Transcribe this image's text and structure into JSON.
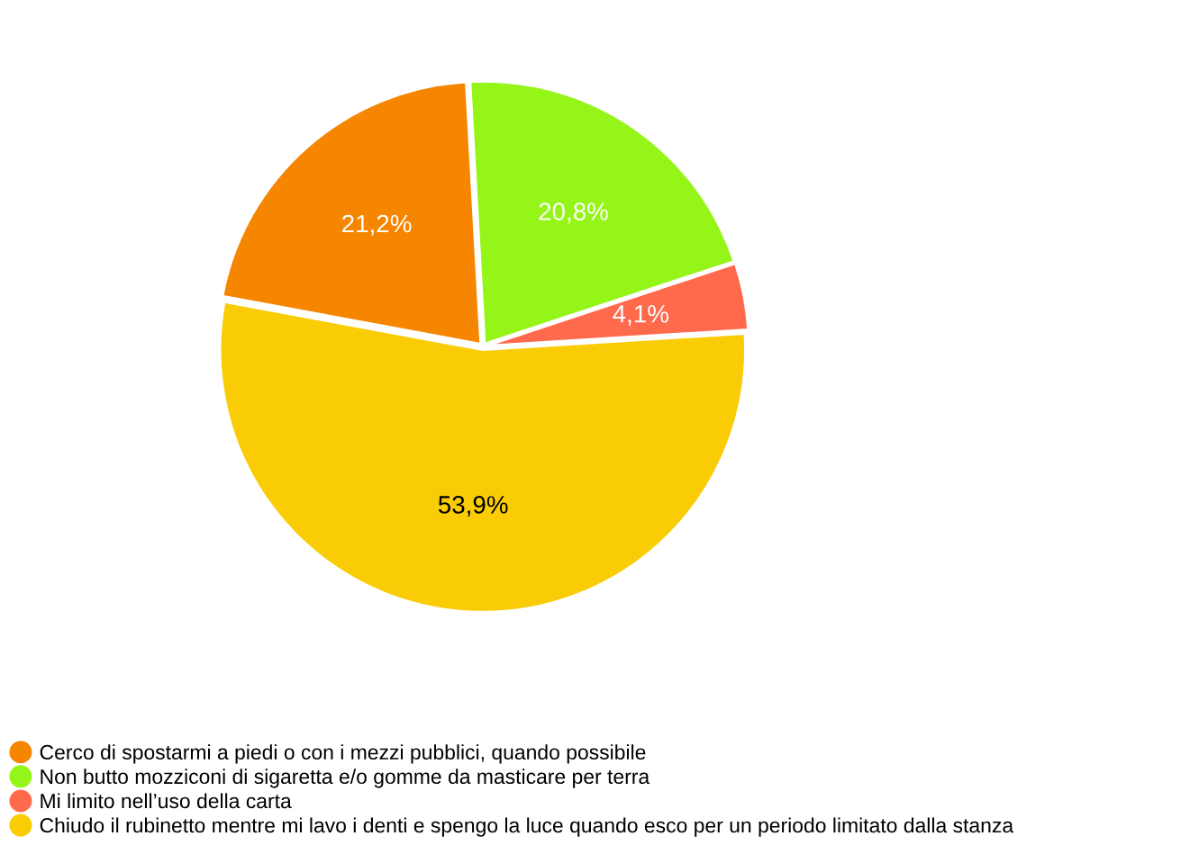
{
  "chart_data": {
    "type": "pie",
    "categories": [
      "Cerco di spostarmi a piedi o con i mezzi pubblici, quando possibile",
      "Non butto mozziconi di sigaretta e/o gomme da masticare per terra",
      "Mi limito nell’uso della carta",
      "Chiudo il rubinetto mentre mi lavo i denti e spengo la luce quando esco per un periodo limitato dalla stanza"
    ],
    "values": [
      21.2,
      20.8,
      4.1,
      53.9
    ],
    "colors": [
      "#f68500",
      "#95f518",
      "#ff6a4c",
      "#f9cc05"
    ],
    "value_labels": [
      "21,2%",
      "20,8%",
      "4,1%",
      "53,9%"
    ],
    "legend": "bottom"
  }
}
